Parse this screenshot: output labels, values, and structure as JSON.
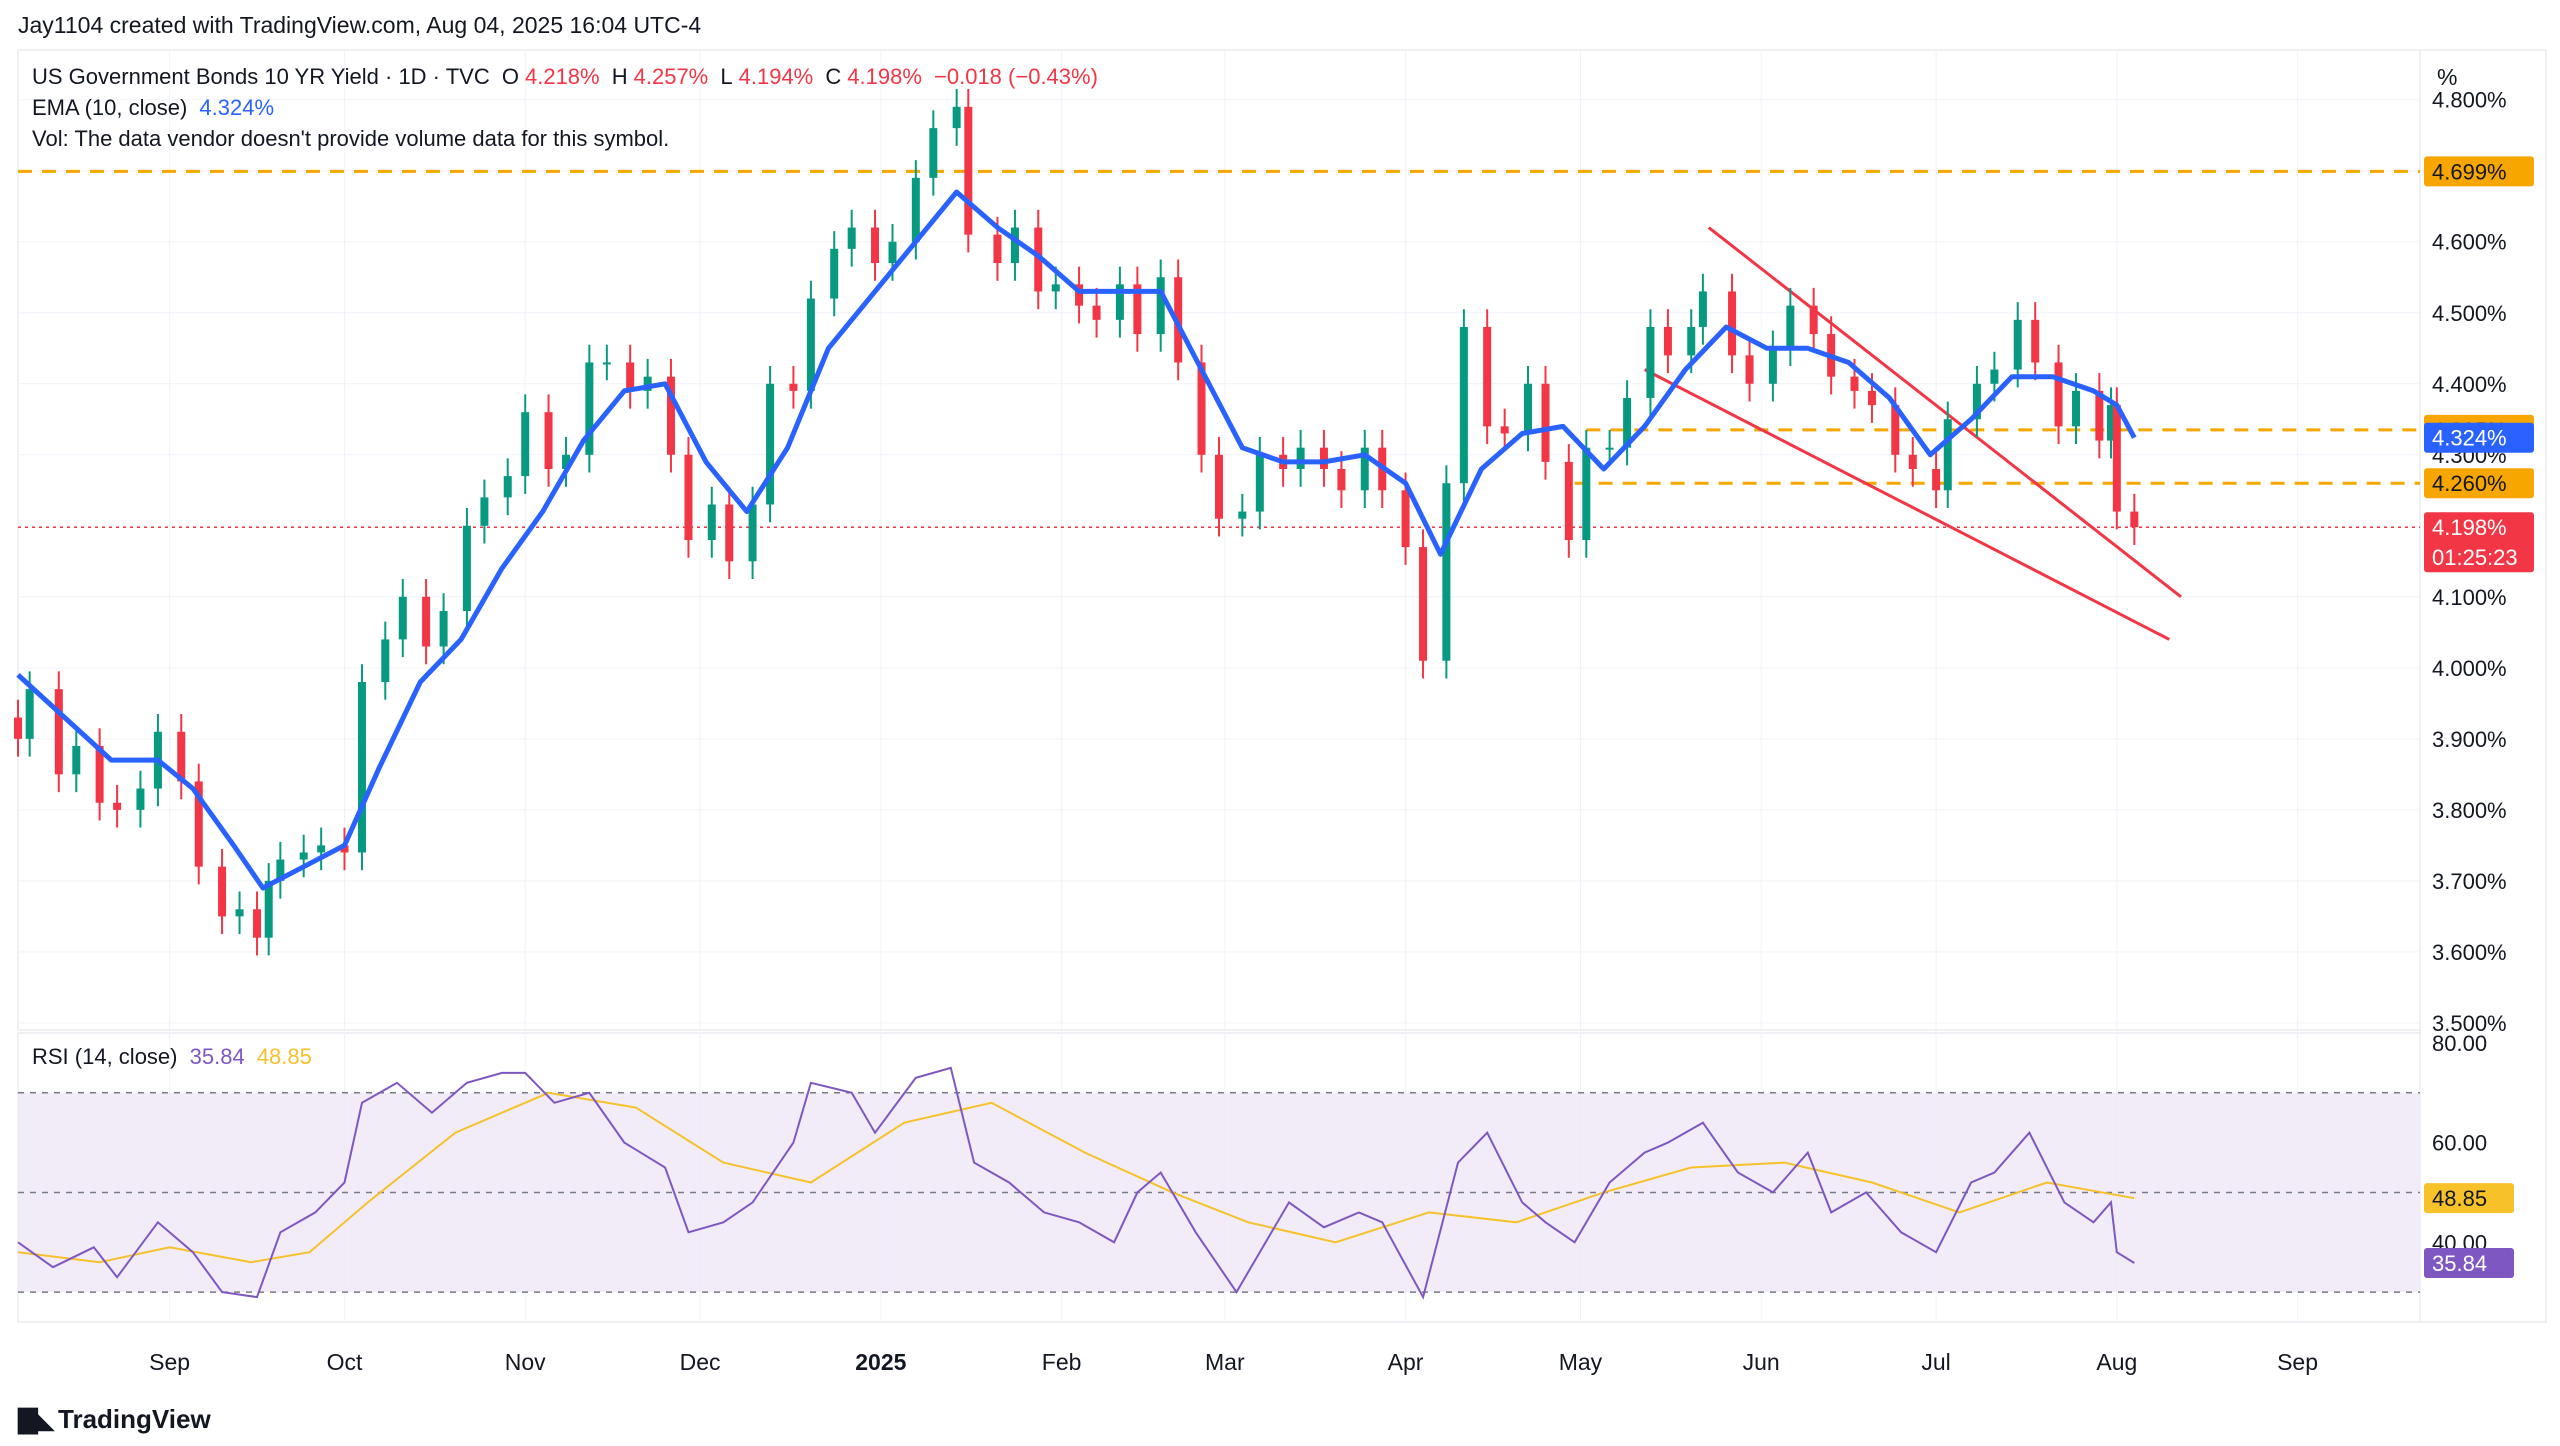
{
  "header": {
    "attribution": "Jay1104 created with TradingView.com, Aug 04, 2025 16:04 UTC-4"
  },
  "legend": {
    "symbol": "US Government Bonds 10 YR Yield · 1D · TVC",
    "o_label": "O",
    "o_value": "4.218%",
    "h_label": "H",
    "h_value": "4.257%",
    "l_label": "L",
    "l_value": "4.194%",
    "c_label": "C",
    "c_value": "4.198%",
    "change": "−0.018 (−0.43%)",
    "ema_label": "EMA (10, close)",
    "ema_value": "4.324%",
    "vol_note": "Vol: The data vendor doesn't provide volume data for this symbol.",
    "rsi_label": "RSI (14, close)",
    "rsi_value": "35.84",
    "rsi_ma_value": "48.85"
  },
  "price_axis_unit": "%",
  "footer": {
    "logo_text": "TradingView"
  },
  "colors": {
    "up": "#089981",
    "down": "#f23645",
    "ema": "#2962ff",
    "level": "#f7a600",
    "trendline": "#f23645",
    "rsi": "#7e57c2",
    "rsi_ma": "#f7c12a",
    "rsi_band": "#ede7f6"
  },
  "chart_data": [
    {
      "type": "candlestick",
      "title": "US Government Bonds 10 YR Yield · 1D · TVC",
      "x_tick_labels": [
        {
          "label": "Sep",
          "date": "2024-09-01"
        },
        {
          "label": "Oct",
          "date": "2024-10-01"
        },
        {
          "label": "Nov",
          "date": "2024-11-01"
        },
        {
          "label": "Dec",
          "date": "2024-12-01"
        },
        {
          "label": "2025",
          "date": "2025-01-01",
          "bold": true
        },
        {
          "label": "Feb",
          "date": "2025-02-01"
        },
        {
          "label": "Mar",
          "date": "2025-03-01"
        },
        {
          "label": "Apr",
          "date": "2025-04-01"
        },
        {
          "label": "May",
          "date": "2025-05-01"
        },
        {
          "label": "Jun",
          "date": "2025-06-01"
        },
        {
          "label": "Jul",
          "date": "2025-07-01"
        },
        {
          "label": "Aug",
          "date": "2025-08-01"
        },
        {
          "label": "Sep",
          "date": "2025-09-01"
        }
      ],
      "x_range": [
        "2024-08-06",
        "2025-09-22"
      ],
      "y_tick_labels": [
        "3.500%",
        "3.600%",
        "3.700%",
        "3.800%",
        "3.900%",
        "4.000%",
        "4.100%",
        "4.200%",
        "4.300%",
        "4.400%",
        "4.500%",
        "4.600%",
        "4.700%",
        "4.800%"
      ],
      "ylim": [
        3.49,
        4.87
      ],
      "close_series": [
        [
          "2024-08-06",
          3.9
        ],
        [
          "2024-08-08",
          3.97
        ],
        [
          "2024-08-13",
          3.85
        ],
        [
          "2024-08-16",
          3.89
        ],
        [
          "2024-08-20",
          3.81
        ],
        [
          "2024-08-23",
          3.8
        ],
        [
          "2024-08-27",
          3.83
        ],
        [
          "2024-08-30",
          3.91
        ],
        [
          "2024-09-03",
          3.84
        ],
        [
          "2024-09-06",
          3.72
        ],
        [
          "2024-09-10",
          3.65
        ],
        [
          "2024-09-13",
          3.66
        ],
        [
          "2024-09-16",
          3.62
        ],
        [
          "2024-09-18",
          3.7
        ],
        [
          "2024-09-20",
          3.73
        ],
        [
          "2024-09-24",
          3.74
        ],
        [
          "2024-09-27",
          3.75
        ],
        [
          "2024-10-01",
          3.74
        ],
        [
          "2024-10-04",
          3.98
        ],
        [
          "2024-10-08",
          4.04
        ],
        [
          "2024-10-11",
          4.1
        ],
        [
          "2024-10-15",
          4.03
        ],
        [
          "2024-10-18",
          4.08
        ],
        [
          "2024-10-22",
          4.2
        ],
        [
          "2024-10-25",
          4.24
        ],
        [
          "2024-10-29",
          4.27
        ],
        [
          "2024-11-01",
          4.36
        ],
        [
          "2024-11-05",
          4.28
        ],
        [
          "2024-11-08",
          4.3
        ],
        [
          "2024-11-12",
          4.43
        ],
        [
          "2024-11-15",
          4.43
        ],
        [
          "2024-11-19",
          4.39
        ],
        [
          "2024-11-22",
          4.41
        ],
        [
          "2024-11-26",
          4.3
        ],
        [
          "2024-11-29",
          4.18
        ],
        [
          "2024-12-03",
          4.23
        ],
        [
          "2024-12-06",
          4.15
        ],
        [
          "2024-12-10",
          4.23
        ],
        [
          "2024-12-13",
          4.4
        ],
        [
          "2024-12-17",
          4.39
        ],
        [
          "2024-12-20",
          4.52
        ],
        [
          "2024-12-24",
          4.59
        ],
        [
          "2024-12-27",
          4.62
        ],
        [
          "2024-12-31",
          4.57
        ],
        [
          "2025-01-03",
          4.6
        ],
        [
          "2025-01-07",
          4.69
        ],
        [
          "2025-01-10",
          4.76
        ],
        [
          "2025-01-14",
          4.79
        ],
        [
          "2025-01-16",
          4.61
        ],
        [
          "2025-01-21",
          4.57
        ],
        [
          "2025-01-24",
          4.62
        ],
        [
          "2025-01-28",
          4.53
        ],
        [
          "2025-01-31",
          4.54
        ],
        [
          "2025-02-04",
          4.51
        ],
        [
          "2025-02-07",
          4.49
        ],
        [
          "2025-02-11",
          4.54
        ],
        [
          "2025-02-14",
          4.47
        ],
        [
          "2025-02-18",
          4.55
        ],
        [
          "2025-02-21",
          4.43
        ],
        [
          "2025-02-25",
          4.3
        ],
        [
          "2025-02-28",
          4.21
        ],
        [
          "2025-03-04",
          4.22
        ],
        [
          "2025-03-07",
          4.3
        ],
        [
          "2025-03-11",
          4.28
        ],
        [
          "2025-03-14",
          4.31
        ],
        [
          "2025-03-18",
          4.28
        ],
        [
          "2025-03-21",
          4.25
        ],
        [
          "2025-03-25",
          4.31
        ],
        [
          "2025-03-28",
          4.25
        ],
        [
          "2025-04-01",
          4.17
        ],
        [
          "2025-04-04",
          4.01
        ],
        [
          "2025-04-08",
          4.26
        ],
        [
          "2025-04-11",
          4.48
        ],
        [
          "2025-04-15",
          4.34
        ],
        [
          "2025-04-18",
          4.33
        ],
        [
          "2025-04-22",
          4.4
        ],
        [
          "2025-04-25",
          4.29
        ],
        [
          "2025-04-29",
          4.18
        ],
        [
          "2025-05-02",
          4.31
        ],
        [
          "2025-05-06",
          4.31
        ],
        [
          "2025-05-09",
          4.38
        ],
        [
          "2025-05-13",
          4.48
        ],
        [
          "2025-05-16",
          4.44
        ],
        [
          "2025-05-20",
          4.48
        ],
        [
          "2025-05-22",
          4.53
        ],
        [
          "2025-05-27",
          4.44
        ],
        [
          "2025-05-30",
          4.4
        ],
        [
          "2025-06-03",
          4.45
        ],
        [
          "2025-06-06",
          4.51
        ],
        [
          "2025-06-10",
          4.47
        ],
        [
          "2025-06-13",
          4.41
        ],
        [
          "2025-06-17",
          4.39
        ],
        [
          "2025-06-20",
          4.37
        ],
        [
          "2025-06-24",
          4.3
        ],
        [
          "2025-06-27",
          4.28
        ],
        [
          "2025-07-01",
          4.25
        ],
        [
          "2025-07-03",
          4.35
        ],
        [
          "2025-07-08",
          4.4
        ],
        [
          "2025-07-11",
          4.42
        ],
        [
          "2025-07-15",
          4.49
        ],
        [
          "2025-07-18",
          4.43
        ],
        [
          "2025-07-22",
          4.34
        ],
        [
          "2025-07-25",
          4.39
        ],
        [
          "2025-07-29",
          4.32
        ],
        [
          "2025-07-31",
          4.37
        ],
        [
          "2025-08-01",
          4.22
        ],
        [
          "2025-08-04",
          4.198
        ]
      ],
      "ema_series_name": "EMA (10, close)",
      "ema_series": [
        [
          "2024-08-06",
          3.99
        ],
        [
          "2024-08-14",
          3.93
        ],
        [
          "2024-08-22",
          3.87
        ],
        [
          "2024-08-30",
          3.87
        ],
        [
          "2024-09-05",
          3.83
        ],
        [
          "2024-09-12",
          3.75
        ],
        [
          "2024-09-17",
          3.69
        ],
        [
          "2024-09-24",
          3.72
        ],
        [
          "2024-10-01",
          3.75
        ],
        [
          "2024-10-07",
          3.86
        ],
        [
          "2024-10-14",
          3.98
        ],
        [
          "2024-10-21",
          4.04
        ],
        [
          "2024-10-28",
          4.14
        ],
        [
          "2024-11-04",
          4.22
        ],
        [
          "2024-11-11",
          4.32
        ],
        [
          "2024-11-18",
          4.39
        ],
        [
          "2024-11-25",
          4.4
        ],
        [
          "2024-12-02",
          4.29
        ],
        [
          "2024-12-09",
          4.22
        ],
        [
          "2024-12-16",
          4.31
        ],
        [
          "2024-12-23",
          4.45
        ],
        [
          "2024-12-31",
          4.53
        ],
        [
          "2025-01-07",
          4.6
        ],
        [
          "2025-01-14",
          4.67
        ],
        [
          "2025-01-21",
          4.62
        ],
        [
          "2025-01-28",
          4.58
        ],
        [
          "2025-02-04",
          4.53
        ],
        [
          "2025-02-11",
          4.53
        ],
        [
          "2025-02-18",
          4.53
        ],
        [
          "2025-02-25",
          4.42
        ],
        [
          "2025-03-04",
          4.31
        ],
        [
          "2025-03-11",
          4.29
        ],
        [
          "2025-03-18",
          4.29
        ],
        [
          "2025-03-25",
          4.3
        ],
        [
          "2025-04-01",
          4.26
        ],
        [
          "2025-04-07",
          4.16
        ],
        [
          "2025-04-14",
          4.28
        ],
        [
          "2025-04-21",
          4.33
        ],
        [
          "2025-04-28",
          4.34
        ],
        [
          "2025-05-05",
          4.28
        ],
        [
          "2025-05-12",
          4.34
        ],
        [
          "2025-05-19",
          4.42
        ],
        [
          "2025-05-26",
          4.48
        ],
        [
          "2025-06-02",
          4.45
        ],
        [
          "2025-06-09",
          4.45
        ],
        [
          "2025-06-16",
          4.43
        ],
        [
          "2025-06-23",
          4.38
        ],
        [
          "2025-06-30",
          4.3
        ],
        [
          "2025-07-07",
          4.35
        ],
        [
          "2025-07-14",
          4.41
        ],
        [
          "2025-07-21",
          4.41
        ],
        [
          "2025-07-28",
          4.39
        ],
        [
          "2025-08-01",
          4.37
        ],
        [
          "2025-08-04",
          4.324
        ]
      ],
      "horizontal_levels": [
        {
          "value": 4.699,
          "label": "4.699%",
          "start": "2024-08-06"
        },
        {
          "value": 4.335,
          "label": "4.335%",
          "start": "2025-05-02"
        },
        {
          "value": 4.26,
          "label": "4.260%",
          "start": "2025-04-30"
        }
      ],
      "trendlines": [
        {
          "from": [
            "2025-05-23",
            4.62
          ],
          "to": [
            "2025-08-12",
            4.1
          ]
        },
        {
          "from": [
            "2025-05-12",
            4.42
          ],
          "to": [
            "2025-08-10",
            4.04
          ]
        }
      ],
      "last_close_label": "4.198%",
      "countdown_label": "01:25:23",
      "ema_last_label": "4.324%"
    },
    {
      "type": "line",
      "title": "RSI (14, close)",
      "ylim": [
        24,
        82
      ],
      "y_tick_labels": [
        "40.00",
        "60.00",
        "80.00"
      ],
      "band": [
        30,
        70
      ],
      "midline": 50,
      "rsi_series": [
        [
          "2024-08-06",
          40
        ],
        [
          "2024-08-12",
          35
        ],
        [
          "2024-08-19",
          39
        ],
        [
          "2024-08-23",
          33
        ],
        [
          "2024-08-30",
          44
        ],
        [
          "2024-09-05",
          38
        ],
        [
          "2024-09-10",
          30
        ],
        [
          "2024-09-16",
          29
        ],
        [
          "2024-09-20",
          42
        ],
        [
          "2024-09-26",
          46
        ],
        [
          "2024-10-01",
          52
        ],
        [
          "2024-10-04",
          68
        ],
        [
          "2024-10-10",
          72
        ],
        [
          "2024-10-16",
          66
        ],
        [
          "2024-10-22",
          72
        ],
        [
          "2024-10-28",
          74
        ],
        [
          "2024-11-01",
          74
        ],
        [
          "2024-11-06",
          68
        ],
        [
          "2024-11-12",
          70
        ],
        [
          "2024-11-18",
          60
        ],
        [
          "2024-11-25",
          55
        ],
        [
          "2024-11-29",
          42
        ],
        [
          "2024-12-05",
          44
        ],
        [
          "2024-12-10",
          48
        ],
        [
          "2024-12-17",
          60
        ],
        [
          "2024-12-20",
          72
        ],
        [
          "2024-12-27",
          70
        ],
        [
          "2024-12-31",
          62
        ],
        [
          "2025-01-07",
          73
        ],
        [
          "2025-01-13",
          75
        ],
        [
          "2025-01-17",
          56
        ],
        [
          "2025-01-23",
          52
        ],
        [
          "2025-01-29",
          46
        ],
        [
          "2025-02-04",
          44
        ],
        [
          "2025-02-10",
          40
        ],
        [
          "2025-02-14",
          50
        ],
        [
          "2025-02-18",
          54
        ],
        [
          "2025-02-24",
          42
        ],
        [
          "2025-03-03",
          30
        ],
        [
          "2025-03-07",
          38
        ],
        [
          "2025-03-12",
          48
        ],
        [
          "2025-03-18",
          43
        ],
        [
          "2025-03-24",
          46
        ],
        [
          "2025-03-28",
          44
        ],
        [
          "2025-04-04",
          29
        ],
        [
          "2025-04-10",
          56
        ],
        [
          "2025-04-15",
          62
        ],
        [
          "2025-04-21",
          48
        ],
        [
          "2025-04-25",
          44
        ],
        [
          "2025-04-30",
          40
        ],
        [
          "2025-05-06",
          52
        ],
        [
          "2025-05-12",
          58
        ],
        [
          "2025-05-16",
          60
        ],
        [
          "2025-05-22",
          64
        ],
        [
          "2025-05-28",
          54
        ],
        [
          "2025-06-03",
          50
        ],
        [
          "2025-06-09",
          58
        ],
        [
          "2025-06-13",
          46
        ],
        [
          "2025-06-19",
          50
        ],
        [
          "2025-06-25",
          42
        ],
        [
          "2025-07-01",
          38
        ],
        [
          "2025-07-07",
          52
        ],
        [
          "2025-07-11",
          54
        ],
        [
          "2025-07-17",
          62
        ],
        [
          "2025-07-23",
          48
        ],
        [
          "2025-07-28",
          44
        ],
        [
          "2025-07-31",
          48
        ],
        [
          "2025-08-01",
          38
        ],
        [
          "2025-08-04",
          35.84
        ]
      ],
      "rsi_ma_series": [
        [
          "2024-08-06",
          38
        ],
        [
          "2024-08-20",
          36
        ],
        [
          "2024-09-01",
          39
        ],
        [
          "2024-09-15",
          36
        ],
        [
          "2024-09-25",
          38
        ],
        [
          "2024-10-05",
          48
        ],
        [
          "2024-10-20",
          62
        ],
        [
          "2024-11-05",
          70
        ],
        [
          "2024-11-20",
          67
        ],
        [
          "2024-12-05",
          56
        ],
        [
          "2024-12-20",
          52
        ],
        [
          "2025-01-05",
          64
        ],
        [
          "2025-01-20",
          68
        ],
        [
          "2025-02-05",
          58
        ],
        [
          "2025-02-20",
          50
        ],
        [
          "2025-03-05",
          44
        ],
        [
          "2025-03-20",
          40
        ],
        [
          "2025-04-05",
          46
        ],
        [
          "2025-04-20",
          44
        ],
        [
          "2025-05-05",
          50
        ],
        [
          "2025-05-20",
          55
        ],
        [
          "2025-06-05",
          56
        ],
        [
          "2025-06-20",
          52
        ],
        [
          "2025-07-05",
          46
        ],
        [
          "2025-07-20",
          52
        ],
        [
          "2025-08-04",
          48.85
        ]
      ],
      "rsi_last_label": "35.84",
      "rsi_ma_last_label": "48.85"
    }
  ]
}
